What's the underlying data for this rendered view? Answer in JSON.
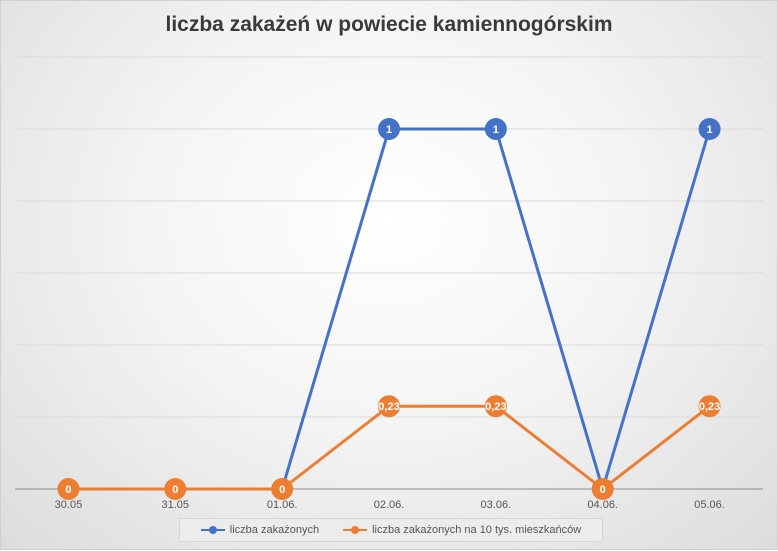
{
  "chart_data": {
    "type": "line",
    "title": "liczba zakażeń w powiecie kamiennogórskim",
    "categories": [
      "30.05",
      "31.05",
      "01.06.",
      "02.06.",
      "03.06.",
      "04.06.",
      "05.06."
    ],
    "series": [
      {
        "name": "liczba zakażonych",
        "color": "#4472c4",
        "values": [
          0,
          0,
          0,
          1,
          1,
          0,
          1
        ],
        "labels": [
          "",
          "",
          "",
          "1",
          "1",
          "",
          "1"
        ]
      },
      {
        "name": "liczba zakażonych na 10 tys. mieszkańców",
        "color": "#ed7d31",
        "values": [
          0,
          0,
          0,
          0.23,
          0.23,
          0,
          0.23
        ],
        "labels": [
          "0",
          "0",
          "0",
          "0,23",
          "0,23",
          "0",
          "0,23"
        ]
      }
    ],
    "ylim": [
      0,
      1.2
    ],
    "grid": true,
    "legend_position": "bottom"
  }
}
